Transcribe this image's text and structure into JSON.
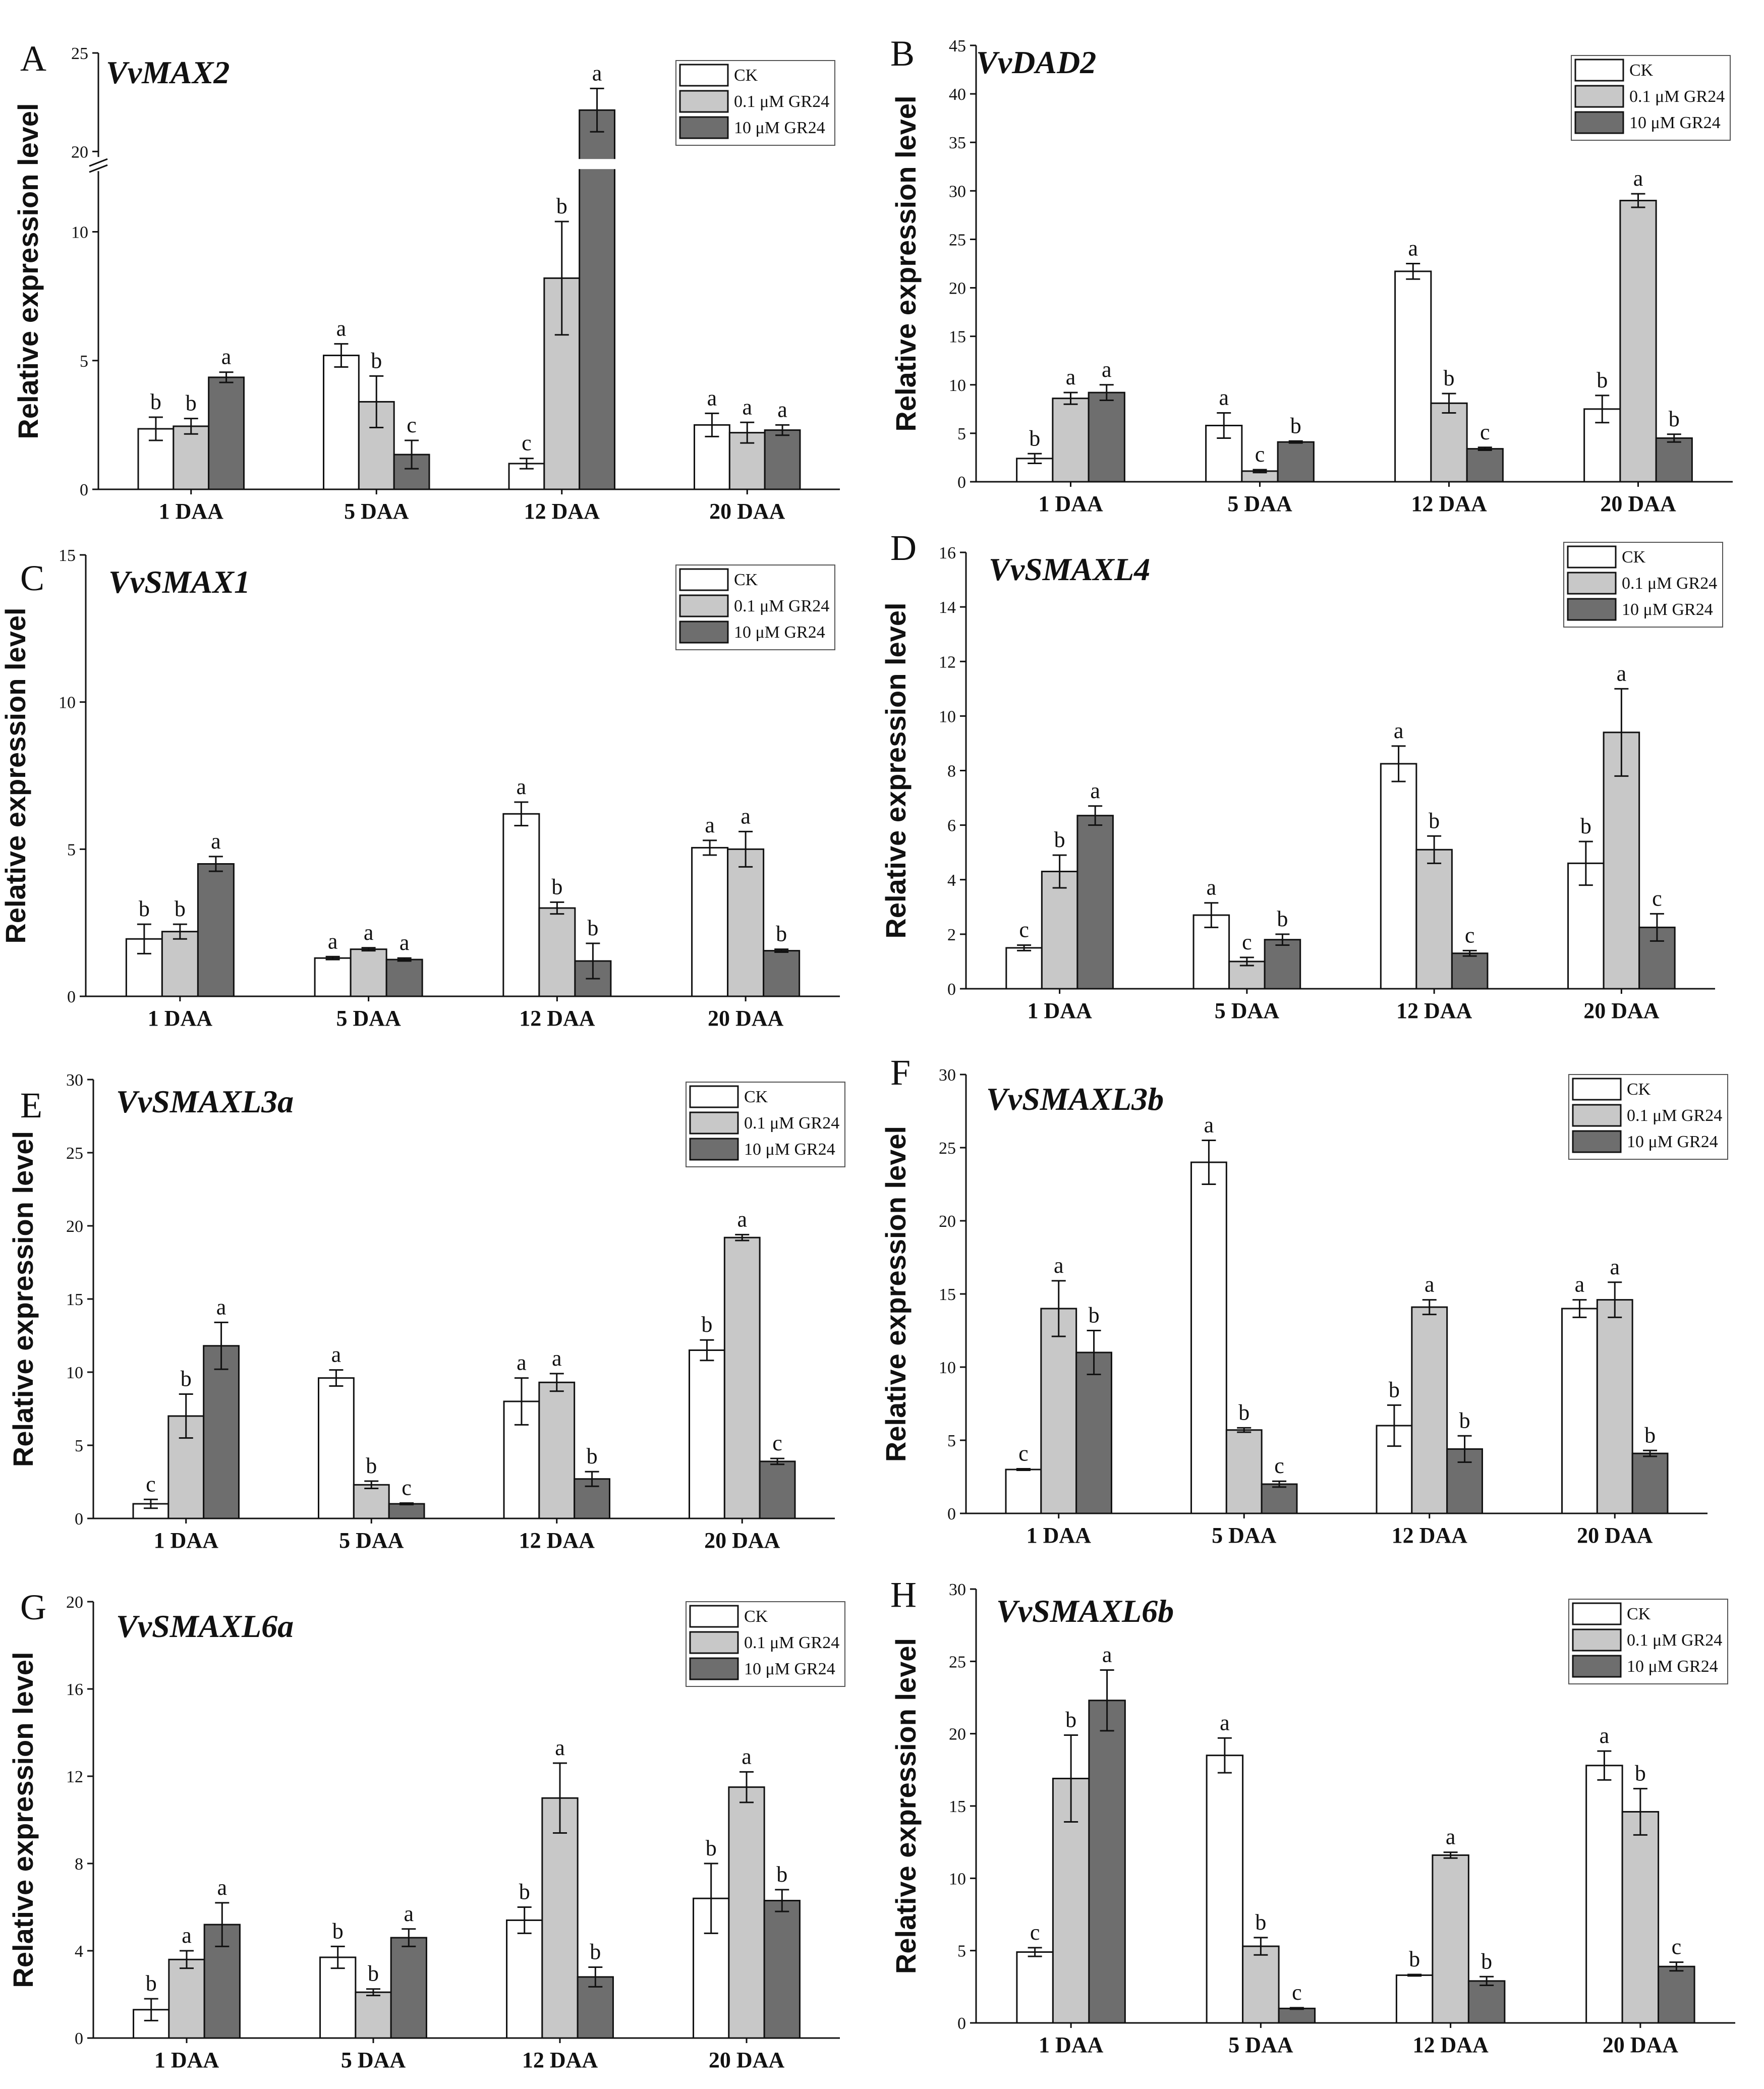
{
  "legend_labels": [
    "CK",
    "0.1 μM GR24",
    "10  μM GR24"
  ],
  "legend_labels_alt": [
    "CK",
    "0.1 μM GR24",
    "10 μM GR24"
  ],
  "colors": {
    "CK": "#ffffff",
    "low": "#c8c8c8",
    "high": "#6e6e6e",
    "axis": "#111111"
  },
  "chart_data": [
    {
      "panel": "A",
      "type": "bar",
      "title": "VvMAX2",
      "ylabel": "Relative expression level",
      "xlabel": "",
      "categories": [
        "1 DAA",
        "5 DAA",
        "12 DAA",
        "20 DAA"
      ],
      "ylim": [
        0,
        25
      ],
      "axis_break": [
        12.2,
        18.8
      ],
      "yticks": [
        0,
        5,
        10,
        20,
        25
      ],
      "series": [
        {
          "name": "CK",
          "values": [
            2.35,
            5.2,
            1.0,
            2.5
          ],
          "errors": [
            0.45,
            0.45,
            0.2,
            0.45
          ],
          "letters": [
            "b",
            "a",
            "c",
            "a"
          ]
        },
        {
          "name": "0.1 μM GR24",
          "values": [
            2.45,
            3.4,
            8.2,
            2.2
          ],
          "errors": [
            0.3,
            1.0,
            2.2,
            0.4
          ],
          "letters": [
            "b",
            "b",
            "b",
            "a"
          ]
        },
        {
          "name": "10  μM GR24",
          "values": [
            4.35,
            1.35,
            22.1,
            2.3
          ],
          "errors": [
            0.2,
            0.55,
            1.1,
            0.2
          ],
          "letters": [
            "a",
            "c",
            "a",
            "a"
          ]
        }
      ]
    },
    {
      "panel": "B",
      "type": "bar",
      "title": "VvDAD2",
      "ylabel": "Relative expression level",
      "xlabel": "",
      "categories": [
        "1 DAA",
        "5 DAA",
        "12 DAA",
        "20 DAA"
      ],
      "ylim": [
        0,
        45
      ],
      "yticks": [
        0,
        5,
        10,
        15,
        20,
        25,
        30,
        35,
        40,
        45
      ],
      "series": [
        {
          "name": "CK",
          "values": [
            2.4,
            5.8,
            21.7,
            7.5
          ],
          "errors": [
            0.5,
            1.3,
            0.8,
            1.4
          ],
          "letters": [
            "b",
            "a",
            "a",
            "b"
          ]
        },
        {
          "name": "0.1 μM GR24",
          "values": [
            8.6,
            1.1,
            8.1,
            29.0
          ],
          "errors": [
            0.6,
            0.15,
            1.0,
            0.7
          ],
          "letters": [
            "a",
            "c",
            "b",
            "a"
          ]
        },
        {
          "name": "10  μM GR24",
          "values": [
            9.2,
            4.1,
            3.4,
            4.5
          ],
          "errors": [
            0.8,
            0.1,
            0.15,
            0.4
          ],
          "letters": [
            "a",
            "b",
            "c",
            "b"
          ]
        }
      ]
    },
    {
      "panel": "C",
      "type": "bar",
      "title": "VvSMAX1",
      "ylabel": "Relative expression level",
      "xlabel": "",
      "categories": [
        "1 DAA",
        "5 DAA",
        "12 DAA",
        "20 DAA"
      ],
      "ylim": [
        0,
        15
      ],
      "yticks": [
        0,
        5,
        10,
        15
      ],
      "series": [
        {
          "name": "CK",
          "values": [
            1.95,
            1.3,
            6.2,
            5.05
          ],
          "errors": [
            0.5,
            0.05,
            0.4,
            0.25
          ],
          "letters": [
            "b",
            "a",
            "a",
            "a"
          ]
        },
        {
          "name": "0.1 μM GR24",
          "values": [
            2.2,
            1.6,
            3.0,
            5.0
          ],
          "errors": [
            0.25,
            0.05,
            0.2,
            0.6
          ],
          "letters": [
            "b",
            "a",
            "b",
            "a"
          ]
        },
        {
          "name": "10  μM GR24",
          "values": [
            4.5,
            1.25,
            1.2,
            1.55
          ],
          "errors": [
            0.25,
            0.05,
            0.6,
            0.05
          ],
          "letters": [
            "a",
            "a",
            "b",
            "b"
          ]
        }
      ]
    },
    {
      "panel": "D",
      "type": "bar",
      "title": "VvSMAXL4",
      "ylabel": "Relative expression level",
      "xlabel": "",
      "categories": [
        "1 DAA",
        "5 DAA",
        "12 DAA",
        "20 DAA"
      ],
      "ylim": [
        0,
        16
      ],
      "yticks": [
        0,
        2,
        4,
        6,
        8,
        10,
        12,
        14,
        16
      ],
      "series": [
        {
          "name": "CK",
          "values": [
            1.5,
            2.7,
            8.25,
            4.6
          ],
          "errors": [
            0.1,
            0.45,
            0.65,
            0.8
          ],
          "letters": [
            "c",
            "a",
            "a",
            "b"
          ]
        },
        {
          "name": "0.1 μM GR24",
          "values": [
            4.3,
            1.0,
            5.1,
            9.4
          ],
          "errors": [
            0.6,
            0.15,
            0.5,
            1.6
          ],
          "letters": [
            "b",
            "c",
            "b",
            "a"
          ]
        },
        {
          "name": "10  μM GR24",
          "values": [
            6.35,
            1.8,
            1.3,
            2.25
          ],
          "errors": [
            0.35,
            0.2,
            0.1,
            0.5
          ],
          "letters": [
            "a",
            "b",
            "c",
            "c"
          ]
        }
      ]
    },
    {
      "panel": "E",
      "type": "bar",
      "title": "VvSMAXL3a",
      "ylabel": "Relative expression level",
      "xlabel": "",
      "categories": [
        "1 DAA",
        "5 DAA",
        "12 DAA",
        "20 DAA"
      ],
      "ylim": [
        0,
        30
      ],
      "yticks": [
        0,
        5,
        10,
        15,
        20,
        25,
        30
      ],
      "series": [
        {
          "name": "CK",
          "values": [
            1.0,
            9.6,
            8.0,
            11.5
          ],
          "errors": [
            0.3,
            0.55,
            1.6,
            0.7
          ],
          "letters": [
            "c",
            "a",
            "a",
            "b"
          ]
        },
        {
          "name": "0.1 μM GR24",
          "values": [
            7.0,
            2.3,
            9.3,
            19.2
          ],
          "errors": [
            1.5,
            0.25,
            0.6,
            0.2
          ],
          "letters": [
            "b",
            "b",
            "a",
            "a"
          ]
        },
        {
          "name": "10  μM GR24",
          "values": [
            11.8,
            1.0,
            2.7,
            3.9
          ],
          "errors": [
            1.6,
            0.05,
            0.5,
            0.2
          ],
          "letters": [
            "a",
            "c",
            "b",
            "c"
          ]
        }
      ]
    },
    {
      "panel": "F",
      "type": "bar",
      "title": "VvSMAXL3b",
      "ylabel": "Relative expression level",
      "xlabel": "",
      "categories": [
        "1 DAA",
        "5 DAA",
        "12 DAA",
        "20 DAA"
      ],
      "ylim": [
        0,
        30
      ],
      "yticks": [
        0,
        5,
        10,
        15,
        20,
        25,
        30
      ],
      "series": [
        {
          "name": "CK",
          "values": [
            3.0,
            24.0,
            6.0,
            14.0
          ],
          "errors": [
            0.05,
            1.5,
            1.4,
            0.6
          ],
          "letters": [
            "c",
            "a",
            "b",
            "a"
          ]
        },
        {
          "name": "0.1 μM GR24",
          "values": [
            14.0,
            5.7,
            14.1,
            14.6
          ],
          "errors": [
            1.9,
            0.15,
            0.5,
            1.2
          ],
          "letters": [
            "a",
            "b",
            "a",
            "a"
          ]
        },
        {
          "name": "10  μM GR24",
          "values": [
            11.0,
            2.0,
            4.4,
            4.1
          ],
          "errors": [
            1.5,
            0.2,
            0.9,
            0.2
          ],
          "letters": [
            "b",
            "c",
            "b",
            "b"
          ]
        }
      ]
    },
    {
      "panel": "G",
      "type": "bar",
      "title": "VvSMAXL6a",
      "ylabel": "Relative expression level",
      "xlabel": "",
      "categories": [
        "1 DAA",
        "5 DAA",
        "12 DAA",
        "20 DAA"
      ],
      "ylim": [
        0,
        20
      ],
      "yticks": [
        0,
        4,
        8,
        12,
        16,
        20
      ],
      "series": [
        {
          "name": "CK",
          "values": [
            1.3,
            3.7,
            5.4,
            6.4
          ],
          "errors": [
            0.5,
            0.5,
            0.6,
            1.6
          ],
          "letters": [
            "b",
            "b",
            "b",
            "b"
          ]
        },
        {
          "name": "0.1 μM GR24",
          "values": [
            3.6,
            2.1,
            11.0,
            11.5
          ],
          "errors": [
            0.4,
            0.15,
            1.6,
            0.7
          ],
          "letters": [
            "a",
            "b",
            "a",
            "a"
          ]
        },
        {
          "name": "10 μM GR24",
          "values": [
            5.2,
            4.6,
            2.8,
            6.3
          ],
          "errors": [
            1.0,
            0.4,
            0.45,
            0.5
          ],
          "letters": [
            "a",
            "a",
            "b",
            "b"
          ]
        }
      ]
    },
    {
      "panel": "H",
      "type": "bar",
      "title": "VvSMAXL6b",
      "ylabel": "Relative expression level",
      "xlabel": "",
      "categories": [
        "1 DAA",
        "5 DAA",
        "12 DAA",
        "20 DAA"
      ],
      "ylim": [
        0,
        30
      ],
      "yticks": [
        0,
        5,
        10,
        15,
        20,
        25,
        30
      ],
      "series": [
        {
          "name": "CK",
          "values": [
            4.9,
            18.5,
            3.3,
            17.8
          ],
          "errors": [
            0.3,
            1.2,
            0.05,
            1.0
          ],
          "letters": [
            "c",
            "a",
            "b",
            "a"
          ]
        },
        {
          "name": "0.1 μM GR24",
          "values": [
            16.9,
            5.3,
            11.6,
            14.6
          ],
          "errors": [
            3.0,
            0.6,
            0.2,
            1.6
          ],
          "letters": [
            "b",
            "b",
            "a",
            "b"
          ]
        },
        {
          "name": "10 μM GR24",
          "values": [
            22.3,
            1.0,
            2.9,
            3.9
          ],
          "errors": [
            2.1,
            0.05,
            0.3,
            0.3
          ],
          "letters": [
            "a",
            "c",
            "b",
            "c"
          ]
        }
      ]
    }
  ]
}
